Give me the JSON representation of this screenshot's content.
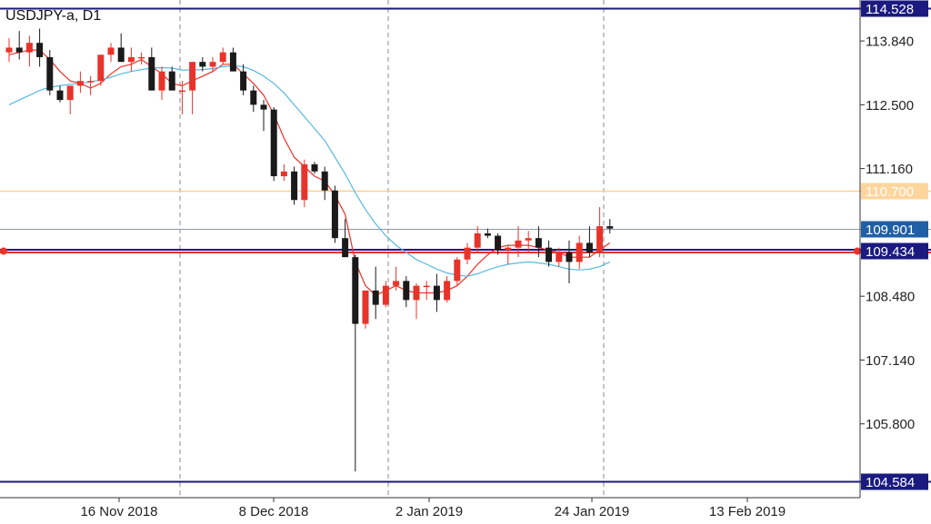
{
  "chart_data": {
    "type": "candlestick",
    "title": "USDJPY-a, D1",
    "price_axis": {
      "ylim": [
        104.25,
        114.7
      ],
      "ticks": [
        "113.840",
        "112.500",
        "111.160",
        "108.480",
        "107.140",
        "105.800"
      ]
    },
    "time_axis": {
      "tick_labels": [
        "16 Nov 2018",
        "8 Dec 2018",
        "2 Jan 2019",
        "24 Jan 2019",
        "13 Feb 2019"
      ],
      "period_separators": [
        "Nov 2018",
        "Dec 2018",
        "Jan 2019",
        "Feb 2019"
      ]
    },
    "grid": false,
    "levels": [
      {
        "label": "114.528",
        "value": 114.528,
        "style": "navy-line",
        "box_color": "#1a1a80"
      },
      {
        "label": "110.700",
        "value": 110.7,
        "style": "orange-line",
        "box_color": "#ffd59e"
      },
      {
        "label": "109.901",
        "value": 109.901,
        "style": "current-price",
        "box_color": "#1f5fa6"
      },
      {
        "label": "109.434",
        "value": 109.434,
        "style": "red-navy-line",
        "box_color": "#1a1a80"
      },
      {
        "label": "104.584",
        "value": 104.584,
        "style": "navy-line",
        "box_color": "#1a1a80"
      }
    ],
    "series": [
      {
        "type": "candlestick",
        "values": [
          [
            113.6,
            113.9,
            113.4,
            113.7
          ],
          [
            113.7,
            114.05,
            113.45,
            113.6
          ],
          [
            113.6,
            113.95,
            113.3,
            113.8
          ],
          [
            113.8,
            114.1,
            113.3,
            113.5
          ],
          [
            113.5,
            113.65,
            112.7,
            112.8
          ],
          [
            112.8,
            112.9,
            112.55,
            112.6
          ],
          [
            112.6,
            112.8,
            112.3,
            112.9
          ],
          [
            112.9,
            113.2,
            112.75,
            113.0
          ],
          [
            113.0,
            113.1,
            112.7,
            113.0
          ],
          [
            113.0,
            113.55,
            112.9,
            113.55
          ],
          [
            113.55,
            113.8,
            113.4,
            113.7
          ],
          [
            113.7,
            114.0,
            113.4,
            113.4
          ],
          [
            113.4,
            113.7,
            113.2,
            113.5
          ],
          [
            113.5,
            113.6,
            113.35,
            113.5
          ],
          [
            113.5,
            113.7,
            112.8,
            112.8
          ],
          [
            112.8,
            113.3,
            112.6,
            113.2
          ],
          [
            113.2,
            113.3,
            112.8,
            112.8
          ],
          [
            112.8,
            113.0,
            112.3,
            112.8
          ],
          [
            112.8,
            113.4,
            112.3,
            113.4
          ],
          [
            113.4,
            113.5,
            113.2,
            113.3
          ],
          [
            113.3,
            113.5,
            113.2,
            113.4
          ],
          [
            113.4,
            113.7,
            113.35,
            113.6
          ],
          [
            113.6,
            113.7,
            113.4,
            113.2
          ],
          [
            113.2,
            113.35,
            112.7,
            112.8
          ],
          [
            112.8,
            112.9,
            112.35,
            112.5
          ],
          [
            112.5,
            112.6,
            111.95,
            112.4
          ],
          [
            112.4,
            112.45,
            110.9,
            111.0
          ],
          [
            111.0,
            111.25,
            110.9,
            111.1
          ],
          [
            111.1,
            111.2,
            110.4,
            110.5
          ],
          [
            110.5,
            111.35,
            110.35,
            111.25
          ],
          [
            111.25,
            111.3,
            111.05,
            111.1
          ],
          [
            111.1,
            111.2,
            110.5,
            110.7
          ],
          [
            110.7,
            110.8,
            109.6,
            109.7
          ],
          [
            109.7,
            110.1,
            109.3,
            109.3
          ],
          [
            109.3,
            109.35,
            104.8,
            107.9
          ],
          [
            107.9,
            108.6,
            107.8,
            108.6
          ],
          [
            108.6,
            109.1,
            108.0,
            108.3
          ],
          [
            108.3,
            108.8,
            108.25,
            108.7
          ],
          [
            108.7,
            109.1,
            108.6,
            108.8
          ],
          [
            108.8,
            108.9,
            108.25,
            108.4
          ],
          [
            108.4,
            108.75,
            108.0,
            108.7
          ],
          [
            108.7,
            108.8,
            108.4,
            108.7
          ],
          [
            108.7,
            108.95,
            108.15,
            108.4
          ],
          [
            108.4,
            108.9,
            108.35,
            108.8
          ],
          [
            108.8,
            109.3,
            108.7,
            109.25
          ],
          [
            109.25,
            109.6,
            109.15,
            109.5
          ],
          [
            109.5,
            109.95,
            109.4,
            109.8
          ],
          [
            109.8,
            109.9,
            109.7,
            109.75
          ],
          [
            109.75,
            109.8,
            109.35,
            109.45
          ],
          [
            109.45,
            109.55,
            109.15,
            109.5
          ],
          [
            109.5,
            109.95,
            109.3,
            109.65
          ],
          [
            109.65,
            109.85,
            109.4,
            109.7
          ],
          [
            109.7,
            109.95,
            109.3,
            109.5
          ],
          [
            109.5,
            109.65,
            109.1,
            109.2
          ],
          [
            109.2,
            109.5,
            109.1,
            109.4
          ],
          [
            109.4,
            109.65,
            108.75,
            109.2
          ],
          [
            109.2,
            109.75,
            109.05,
            109.6
          ],
          [
            109.6,
            109.95,
            109.3,
            109.4
          ],
          [
            109.4,
            110.35,
            109.3,
            109.95
          ],
          [
            109.95,
            110.1,
            109.8,
            109.901
          ]
        ]
      },
      {
        "type": "line",
        "color": "#e8332b",
        "values": [
          113.55,
          113.6,
          113.65,
          113.65,
          113.45,
          113.2,
          113.0,
          112.95,
          112.85,
          112.95,
          113.15,
          113.3,
          113.35,
          113.45,
          113.3,
          113.15,
          112.95,
          112.9,
          113.0,
          113.1,
          113.2,
          113.35,
          113.35,
          113.15,
          112.95,
          112.7,
          112.3,
          111.8,
          111.4,
          111.2,
          111.0,
          110.9,
          110.6,
          110.2,
          109.2,
          108.7,
          108.5,
          108.6,
          108.7,
          108.6,
          108.55,
          108.55,
          108.55,
          108.6,
          108.7,
          108.9,
          109.15,
          109.35,
          109.5,
          109.55,
          109.55,
          109.55,
          109.5,
          109.45,
          109.4,
          109.3,
          109.3,
          109.3,
          109.45,
          109.6
        ]
      },
      {
        "type": "line",
        "color": "#57b9df",
        "values": [
          112.5,
          112.6,
          112.7,
          112.8,
          112.87,
          112.9,
          112.93,
          112.95,
          112.98,
          113.02,
          113.08,
          113.15,
          113.2,
          113.24,
          113.27,
          113.28,
          113.27,
          113.23,
          113.23,
          113.24,
          113.26,
          113.3,
          113.32,
          113.3,
          113.22,
          113.1,
          112.95,
          112.75,
          112.5,
          112.25,
          112.0,
          111.75,
          111.4,
          111.05,
          110.65,
          110.3,
          110.0,
          109.75,
          109.55,
          109.4,
          109.25,
          109.15,
          109.05,
          108.97,
          108.92,
          108.9,
          108.95,
          109.03,
          109.1,
          109.15,
          109.18,
          109.2,
          109.18,
          109.15,
          109.1,
          109.05,
          109.03,
          109.05,
          109.1,
          109.2
        ]
      }
    ]
  },
  "colors": {
    "bull": "#e8332b",
    "bear": "#1a1a1a",
    "axis": "#333333",
    "separator": "#888888"
  }
}
